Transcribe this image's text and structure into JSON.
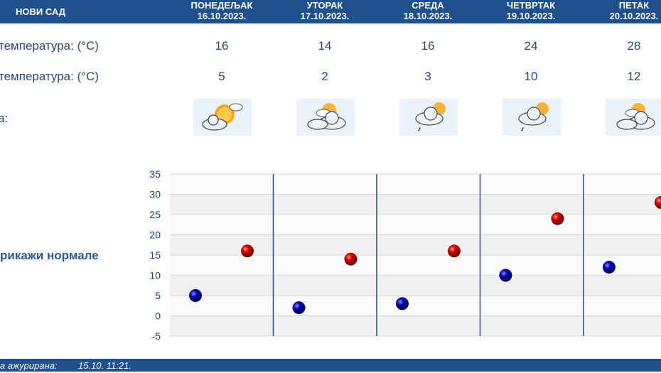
{
  "header": {
    "city": "НОВИ САД",
    "days": [
      {
        "name": "ПОНЕДЕЉАК",
        "date": "16.10.2023."
      },
      {
        "name": "УТОРАК",
        "date": "17.10.2023."
      },
      {
        "name": "СРЕДА",
        "date": "18.10.2023."
      },
      {
        "name": "ЧЕТВРТАК",
        "date": "19.10.2023."
      },
      {
        "name": "ПЕТАК",
        "date": "20.10.2023."
      }
    ]
  },
  "rows": {
    "max_label": "температура: (°C)",
    "min_label": "температура: (°C)",
    "icon_label": "а:",
    "max_values": [
      "16",
      "14",
      "16",
      "24",
      "28"
    ],
    "min_values": [
      "5",
      "2",
      "3",
      "10",
      "12"
    ]
  },
  "icons": [
    "partly-sunny-icon",
    "sun-cloud-icon",
    "cloud-drizzle-sun-icon",
    "cloud-drizzle-sun-icon",
    "sun-cloud-icon"
  ],
  "normals_label": "рикажи нормале",
  "footer": {
    "label": "а ажурирана:",
    "timestamp": "15.10. 11:21."
  },
  "colors": {
    "header_bg": "#1e4f8f",
    "max_marker": "#cc0000",
    "min_marker": "#0000b0",
    "divider": "#1e4f8f"
  },
  "chart_data": {
    "type": "scatter",
    "ylim": [
      -5,
      35
    ],
    "yticks": [
      "35",
      "30",
      "25",
      "20",
      "15",
      "10",
      "5",
      "0",
      "-5"
    ],
    "series": [
      {
        "values": [
          16,
          14,
          16,
          24,
          28
        ]
      },
      {
        "values": [
          5,
          2,
          3,
          10,
          12
        ]
      }
    ]
  }
}
